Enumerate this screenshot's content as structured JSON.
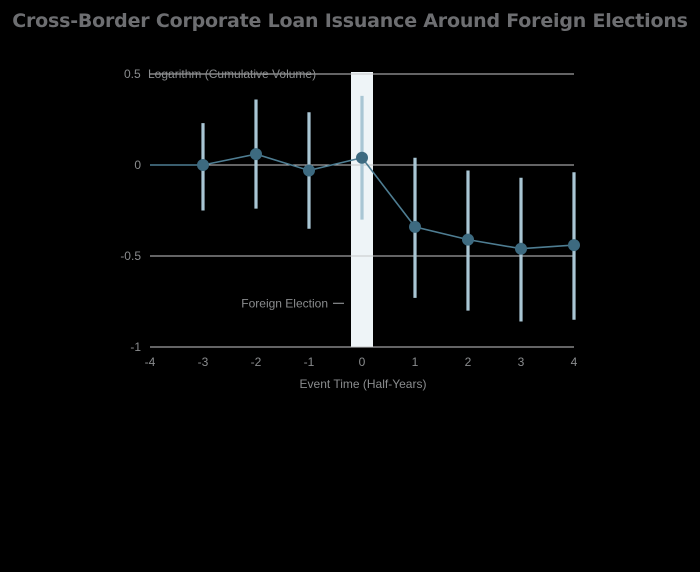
{
  "chart_data": {
    "type": "line",
    "title": "Cross-Border Corporate Loan Issuance Around Foreign Elections",
    "ylabel": "Logarithm (Cumulative Volume)",
    "xlabel": "Event Time (Half-Years)",
    "xlim": [
      -4,
      4
    ],
    "ylim": [
      -1,
      0.5
    ],
    "x_ticks": [
      "-4",
      "-3",
      "-2",
      "-1",
      "0",
      "1",
      "2",
      "3",
      "4"
    ],
    "y_ticks": [
      {
        "value": 0.5,
        "label": "0.5"
      },
      {
        "value": 0,
        "label": "0"
      },
      {
        "value": -0.5,
        "label": "-0.5"
      },
      {
        "value": -1,
        "label": "-1"
      }
    ],
    "grid": true,
    "event_annotation": {
      "label": "Foreign Election",
      "x": 0
    },
    "series": [
      {
        "x": [
          -4,
          -3,
          -2,
          -1,
          0,
          1,
          2,
          3,
          4
        ],
        "values": [
          0,
          0,
          0.06,
          -0.03,
          0.04,
          -0.34,
          -0.41,
          -0.46,
          -0.44
        ],
        "has_marker": [
          false,
          true,
          true,
          true,
          true,
          true,
          true,
          true,
          true
        ],
        "ci_low": [
          null,
          -0.25,
          -0.24,
          -0.35,
          -0.3,
          -0.73,
          -0.8,
          -0.86,
          -0.85
        ],
        "ci_high": [
          null,
          0.23,
          0.36,
          0.29,
          0.38,
          0.04,
          -0.03,
          -0.07,
          -0.04
        ]
      }
    ],
    "colors": {
      "line": "#4e7d92",
      "marker": "#3d6a80",
      "error_bar": "#a9c6d4",
      "election_band": "#eef4f7",
      "grid": "#c7c8ca",
      "text": "#8a8c8e",
      "title": "#6d6e71"
    }
  }
}
